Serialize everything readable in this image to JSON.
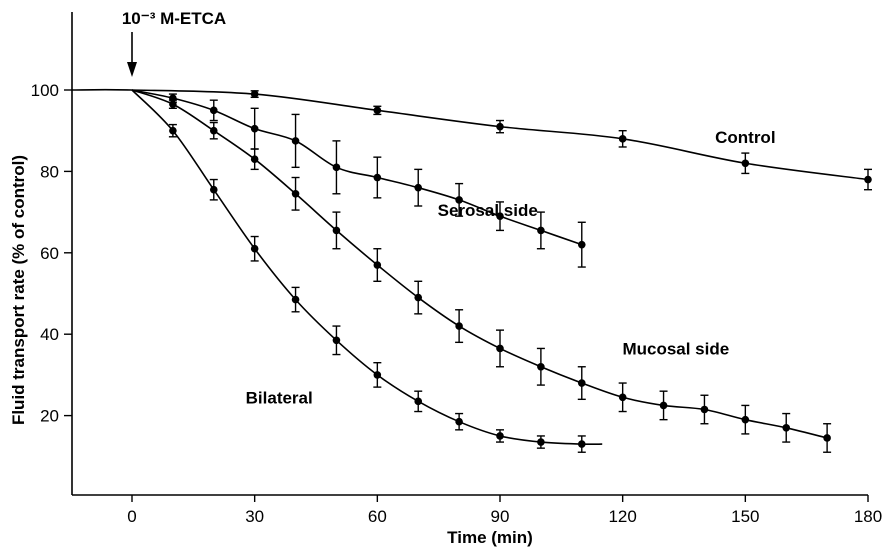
{
  "chart_data": {
    "type": "line",
    "title": "",
    "xlabel": "Time (min)",
    "ylabel": "Fluid transport rate (% of control)",
    "xlim": [
      -10,
      180
    ],
    "ylim": [
      0,
      120
    ],
    "xticks": [
      0,
      30,
      60,
      90,
      120,
      150,
      180
    ],
    "yticks": [
      20,
      40,
      60,
      80,
      100
    ],
    "grid": false,
    "legend": "none",
    "annotations": [
      {
        "text": "10⁻³ M-ETCA",
        "x": 0
      }
    ],
    "series": [
      {
        "name": "Control",
        "label_at": [
          150,
          87
        ],
        "x": [
          -15,
          0,
          30,
          60,
          90,
          120,
          150,
          180
        ],
        "y": [
          100,
          100,
          99,
          95,
          91,
          88,
          82,
          78
        ],
        "err": [
          0,
          0,
          0.8,
          1,
          1.5,
          2,
          2.5,
          2.5
        ]
      },
      {
        "name": "Serosal side",
        "label_at": [
          87,
          69
        ],
        "x": [
          0,
          10,
          20,
          30,
          40,
          50,
          60,
          70,
          80,
          90,
          100,
          110
        ],
        "y": [
          100,
          98,
          95,
          90.5,
          87.5,
          81,
          78.5,
          76,
          73,
          69,
          65.5,
          62
        ],
        "err": [
          0,
          1,
          2.5,
          5,
          6.5,
          6.5,
          5,
          4.5,
          4,
          3.5,
          4.5,
          5.5
        ]
      },
      {
        "name": "Mucosal side",
        "label_at": [
          133,
          35
        ],
        "x": [
          0,
          10,
          20,
          30,
          40,
          50,
          60,
          70,
          80,
          90,
          100,
          110,
          120,
          130,
          140,
          150,
          160,
          170
        ],
        "y": [
          100,
          96.5,
          90,
          83,
          74.5,
          65.5,
          57,
          49,
          42,
          36.5,
          32,
          28,
          24.5,
          22.5,
          21.5,
          19,
          17,
          14.5
        ],
        "err": [
          0,
          1,
          2,
          2.5,
          4,
          4.5,
          4,
          4,
          4,
          4.5,
          4.5,
          4,
          3.5,
          3.5,
          3.5,
          3.5,
          3.5,
          3.5
        ]
      },
      {
        "name": "Bilateral",
        "label_at": [
          36,
          23
        ],
        "x": [
          0,
          10,
          20,
          30,
          40,
          50,
          60,
          70,
          80,
          90,
          100,
          110,
          115
        ],
        "y": [
          100,
          90,
          75.5,
          61,
          48.5,
          38.5,
          30,
          23.5,
          18.5,
          15,
          13.5,
          13,
          13
        ],
        "err": [
          0,
          1.5,
          2.5,
          3,
          3,
          3.5,
          3,
          2.5,
          2,
          1.5,
          1.5,
          2,
          0
        ]
      }
    ]
  }
}
